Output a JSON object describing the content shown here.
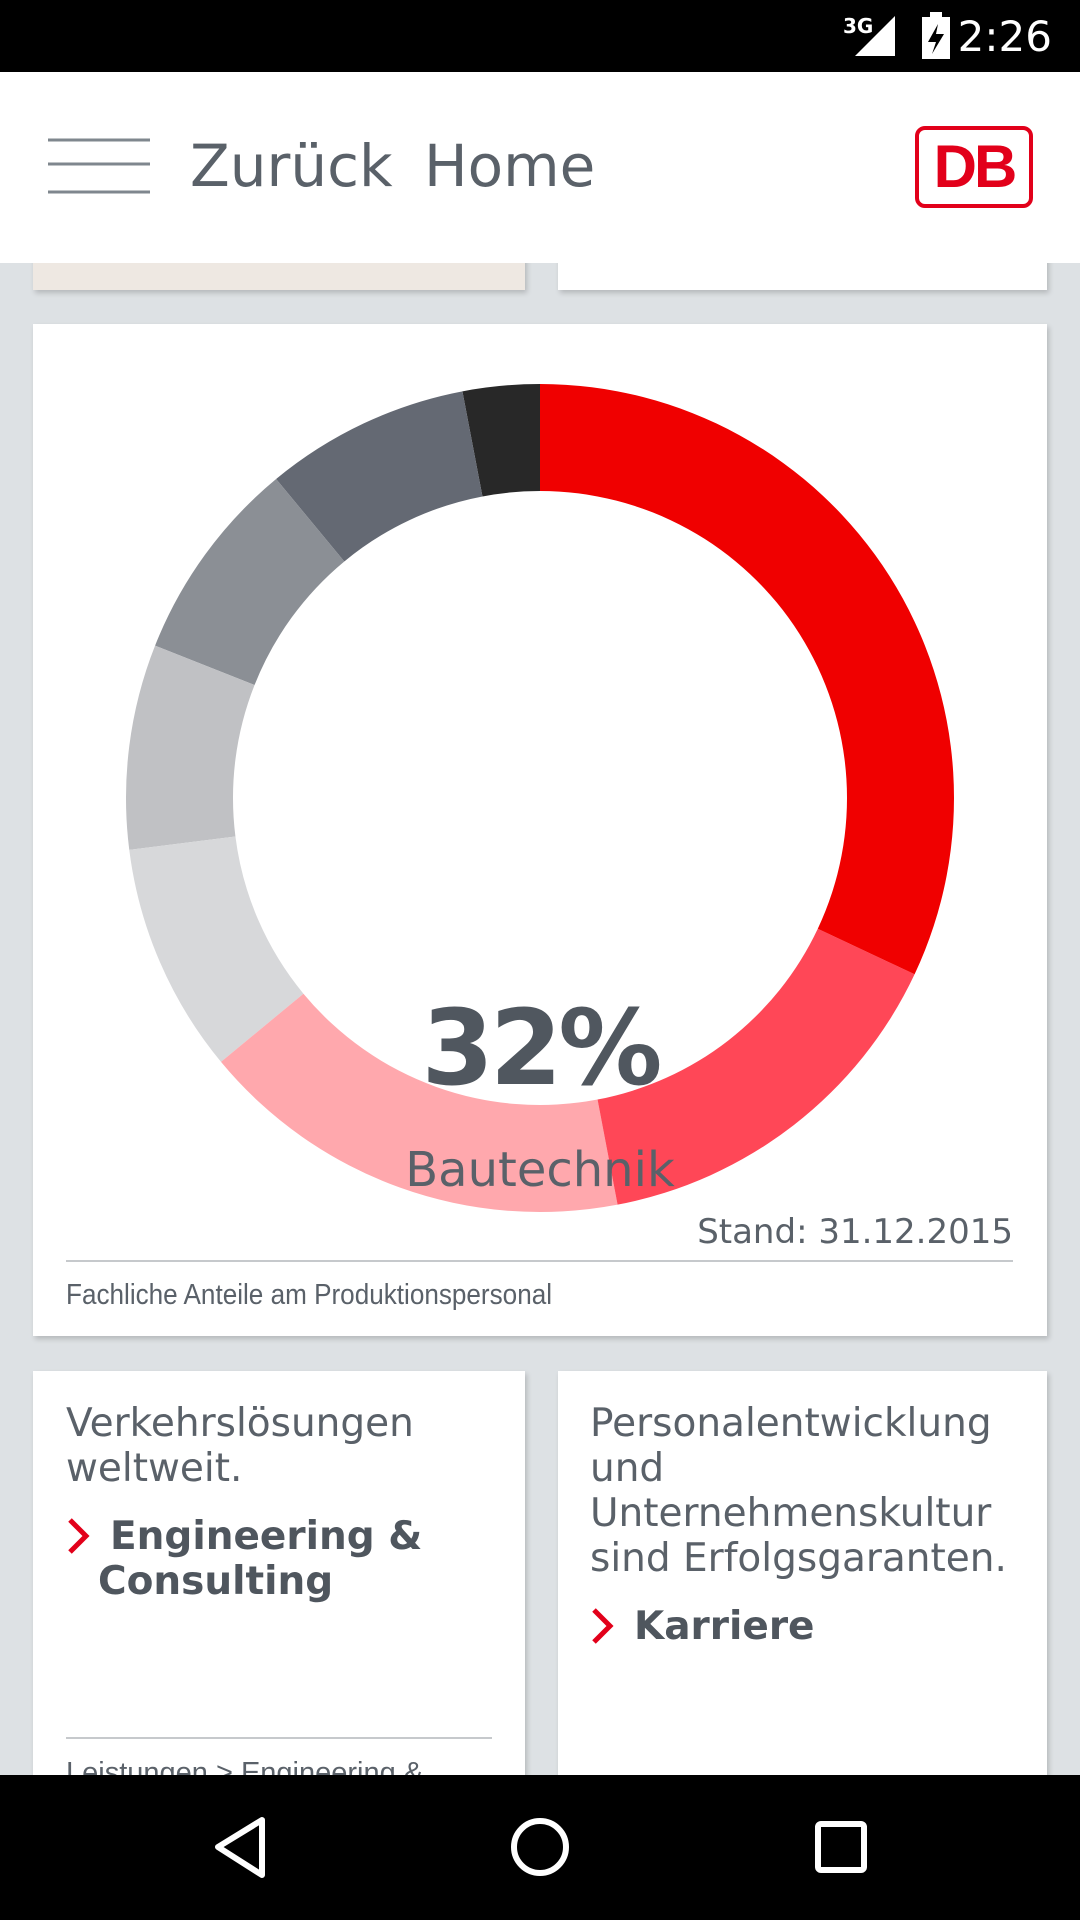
{
  "status_bar": {
    "network": "3G",
    "time": "2:26"
  },
  "header": {
    "back": "Zurück",
    "home": "Home",
    "logo": "DB"
  },
  "chart_data": {
    "type": "donut",
    "categories": [
      "Bautechnik",
      null,
      null,
      null,
      null,
      null,
      null,
      null
    ],
    "values": [
      32,
      15,
      17,
      9,
      8,
      8,
      8,
      3
    ],
    "value_labels": [
      "32%",
      null,
      null,
      null,
      null,
      null,
      null,
      null
    ],
    "colors": [
      "#f00000",
      "#ff4757",
      "#ffa8ad",
      "#d7d8da",
      "#c0c1c4",
      "#8b8f95",
      "#646973",
      "#282828"
    ],
    "note": "Stand: 31.12.2015",
    "caption": "Fachliche Anteile am Produktionspersonal"
  },
  "cards": [
    {
      "text": "Verkehrslösungen weltweit.",
      "link": "Engineering & Consulting",
      "breadcrumb": "Leistungen > Engineering &"
    },
    {
      "text": "Personalentwicklung und Unternehmenskultur sind Erfolgsgaranten.",
      "link": "Karriere"
    }
  ]
}
